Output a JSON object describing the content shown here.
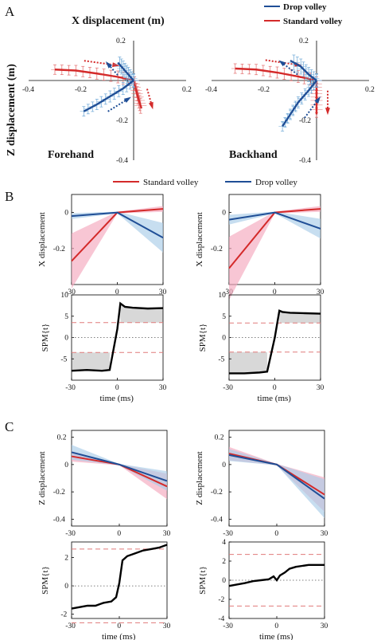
{
  "panel_letters": [
    "A",
    "B",
    "C"
  ],
  "colors": {
    "drop": "#1f4e96",
    "standard": "#d42a2a",
    "drop_light": "#a9cde8",
    "standard_light": "#f4a7bd",
    "drop_err": "#6aa6d6",
    "standard_err": "#e26a6a"
  },
  "chart_data": [
    {
      "id": "A-forehand",
      "type": "line",
      "title": "Forehand",
      "top_label": "X displacement (m)",
      "side_label": "Z displacement (m)",
      "legend": [
        "Drop volley",
        "Standard volley"
      ],
      "xlim": [
        -0.4,
        0.2
      ],
      "ylim": [
        -0.4,
        0.2
      ],
      "xticks": [
        "-0.4",
        "-0.2",
        "0",
        "0.2"
      ],
      "yticks": [
        "0.2",
        "-0.2",
        "-0.4"
      ],
      "series": [
        {
          "name": "Standard volley",
          "x": [
            -0.3,
            -0.22,
            -0.14,
            -0.06,
            0
          ],
          "y": [
            0.055,
            0.05,
            0.035,
            0.018,
            0
          ],
          "x_after": [
            0,
            0.01,
            0.02,
            0.03
          ],
          "y_after": [
            0,
            -0.05,
            -0.1,
            -0.14
          ]
        },
        {
          "name": "Drop volley",
          "x": [
            -0.19,
            -0.14,
            -0.09,
            -0.04,
            0
          ],
          "y": [
            -0.155,
            -0.12,
            -0.08,
            -0.04,
            0
          ],
          "x_after": [
            0,
            -0.02,
            -0.04,
            -0.06
          ],
          "y_after": [
            0,
            0.03,
            0.06,
            0.09
          ]
        }
      ]
    },
    {
      "id": "A-backhand",
      "type": "line",
      "title": "Backhand",
      "xlim": [
        -0.4,
        0.2
      ],
      "ylim": [
        -0.4,
        0.2
      ],
      "xticks": [
        "-0.4",
        "-0.2",
        "0",
        "0.2"
      ],
      "yticks": [
        "0.2",
        "-0.2",
        "-0.4"
      ],
      "series": [
        {
          "name": "Standard volley",
          "x": [
            -0.31,
            -0.23,
            -0.15,
            -0.07,
            0
          ],
          "y": [
            0.06,
            0.055,
            0.04,
            0.02,
            0
          ],
          "x_after": [
            0,
            0.0,
            0.0,
            0.0
          ],
          "y_after": [
            0,
            -0.05,
            -0.1,
            -0.17
          ]
        },
        {
          "name": "Drop volley",
          "x": [
            -0.13,
            -0.1,
            -0.07,
            -0.03,
            0
          ],
          "y": [
            -0.23,
            -0.17,
            -0.11,
            -0.05,
            0
          ],
          "x_after": [
            0,
            -0.03,
            -0.06,
            -0.1
          ],
          "y_after": [
            0,
            0.03,
            0.07,
            0.1
          ]
        }
      ]
    },
    {
      "id": "B-left-top",
      "type": "line",
      "ylabel": "X displacement",
      "xlim": [
        -30,
        30
      ],
      "ylim": [
        -0.4,
        0.1
      ],
      "yticks": [
        "0",
        "-0.2"
      ],
      "series": [
        {
          "name": "Standard volley",
          "x": [
            -30,
            0,
            30
          ],
          "y": [
            -0.27,
            0,
            0.02
          ]
        },
        {
          "name": "Drop volley",
          "x": [
            -30,
            0,
            30
          ],
          "y": [
            -0.02,
            0,
            -0.14
          ]
        }
      ]
    },
    {
      "id": "B-right-top",
      "type": "line",
      "ylabel": "X displacement",
      "xlim": [
        -30,
        30
      ],
      "ylim": [
        -0.4,
        0.1
      ],
      "yticks": [
        "0",
        "-0.2"
      ],
      "series": [
        {
          "name": "Standard volley",
          "x": [
            -30,
            0,
            30
          ],
          "y": [
            -0.31,
            0,
            0.02
          ]
        },
        {
          "name": "Drop volley",
          "x": [
            -30,
            0,
            30
          ],
          "y": [
            -0.04,
            0,
            -0.09
          ]
        }
      ]
    },
    {
      "id": "B-left-spm",
      "type": "line",
      "ylabel": "SPM{t}",
      "xlabel": "time (ms)",
      "xlim": [
        -30,
        30
      ],
      "ylim": [
        -10,
        10
      ],
      "xticks": [
        "-30",
        "0",
        "30"
      ],
      "yticks": [
        "10",
        "5",
        "0",
        "-5"
      ],
      "threshold": 3.5,
      "series": [
        {
          "name": "SPM{t}",
          "x": [
            -30,
            -20,
            -10,
            -5,
            0,
            2,
            5,
            10,
            20,
            30
          ],
          "y": [
            -7.8,
            -7.6,
            -7.8,
            -7.6,
            2,
            8,
            7.2,
            7.0,
            6.8,
            6.9
          ]
        }
      ]
    },
    {
      "id": "B-right-spm",
      "type": "line",
      "ylabel": "SPM{t}",
      "xlabel": "time (ms)",
      "xlim": [
        -30,
        30
      ],
      "ylim": [
        -10,
        10
      ],
      "xticks": [
        "-30",
        "0",
        "30"
      ],
      "yticks": [
        "10",
        "5",
        "0",
        "-5"
      ],
      "threshold": 3.4,
      "series": [
        {
          "name": "SPM{t}",
          "x": [
            -30,
            -20,
            -10,
            -5,
            0,
            3,
            5,
            10,
            20,
            30
          ],
          "y": [
            -8.4,
            -8.4,
            -8.2,
            -8.0,
            0,
            6.3,
            6.0,
            5.8,
            5.7,
            5.6
          ]
        }
      ]
    },
    {
      "id": "C-left-top",
      "type": "line",
      "ylabel": "Z displacement",
      "xlim": [
        -30,
        30
      ],
      "ylim": [
        -0.45,
        0.25
      ],
      "yticks": [
        "0.2",
        "0",
        "-0.2",
        "-0.4"
      ],
      "series": [
        {
          "name": "Standard volley",
          "x": [
            -30,
            0,
            30
          ],
          "y": [
            0.06,
            0,
            -0.16
          ]
        },
        {
          "name": "Drop volley",
          "x": [
            -30,
            0,
            30
          ],
          "y": [
            0.09,
            0,
            -0.12
          ]
        }
      ]
    },
    {
      "id": "C-right-top",
      "type": "line",
      "ylabel": "Z displacement",
      "xlim": [
        -30,
        30
      ],
      "ylim": [
        -0.45,
        0.25
      ],
      "yticks": [
        "0.2",
        "0",
        "-0.2",
        "-0.4"
      ],
      "series": [
        {
          "name": "Standard volley",
          "x": [
            -30,
            0,
            30
          ],
          "y": [
            0.08,
            0,
            -0.22
          ]
        },
        {
          "name": "Drop volley",
          "x": [
            -30,
            0,
            30
          ],
          "y": [
            0.07,
            0,
            -0.25
          ]
        }
      ]
    },
    {
      "id": "C-left-spm",
      "type": "line",
      "ylabel": "SPM{t}",
      "xlabel": "time (ms)",
      "xlim": [
        -30,
        30
      ],
      "ylim": [
        -2.3,
        3.1
      ],
      "xticks": [
        "-30",
        "0",
        "30"
      ],
      "yticks": [
        "2",
        "0",
        "-2"
      ],
      "threshold": 2.6,
      "series": [
        {
          "name": "SPM{t}",
          "x": [
            -30,
            -20,
            -15,
            -10,
            -5,
            -2,
            0,
            2,
            5,
            10,
            15,
            20,
            25,
            30
          ],
          "y": [
            -1.6,
            -1.4,
            -1.4,
            -1.2,
            -1.1,
            -0.8,
            0.2,
            1.8,
            2.1,
            2.3,
            2.5,
            2.6,
            2.7,
            2.9
          ]
        }
      ]
    },
    {
      "id": "C-right-spm",
      "type": "line",
      "ylabel": "SPM{t}",
      "xlabel": "time (ms)",
      "xlim": [
        -30,
        30
      ],
      "ylim": [
        -4,
        4
      ],
      "xticks": [
        "-30",
        "0",
        "30"
      ],
      "yticks": [
        "4",
        "2",
        "0",
        "-2",
        "-4"
      ],
      "threshold": 2.7,
      "series": [
        {
          "name": "SPM{t}",
          "x": [
            -30,
            -20,
            -15,
            -10,
            -5,
            -2,
            0,
            2,
            5,
            8,
            12,
            16,
            20,
            25,
            30
          ],
          "y": [
            -0.6,
            -0.3,
            -0.1,
            0.0,
            0.1,
            0.4,
            0.0,
            0.5,
            0.8,
            1.2,
            1.4,
            1.5,
            1.6,
            1.6,
            1.6
          ]
        }
      ]
    }
  ],
  "legend_bc": [
    "Standard volley",
    "Drop volley"
  ],
  "time_label": "time (ms)"
}
